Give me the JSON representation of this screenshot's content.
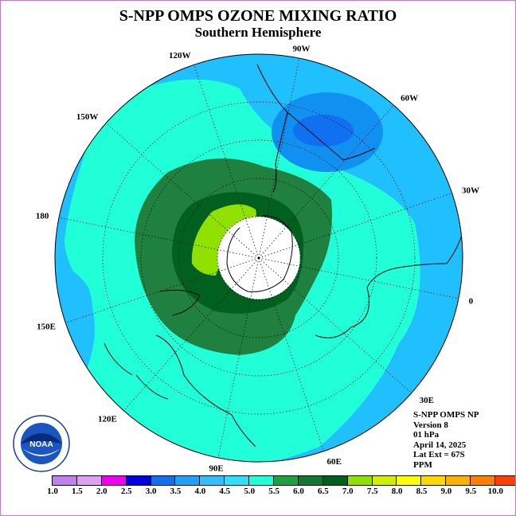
{
  "title": "S-NPP OMPS OZONE MIXING RATIO",
  "subtitle": "Southern Hemisphere",
  "info": {
    "instrument": "S-NPP OMPS NP",
    "version": "Version 8",
    "pressure": "01 hPa",
    "date": "April 14, 2025",
    "lat_ext": "Lat Ext = 67S",
    "units": "PPM"
  },
  "logo_text": "NOAA",
  "logo_ring_text": "NATIONAL OCEANIC AND ATMOSPHERIC ADMINISTRATION  U.S. DEPARTMENT OF COMMERCE",
  "longitude_labels": [
    {
      "text": "0",
      "lon": 0
    },
    {
      "text": "30W",
      "lon": -30
    },
    {
      "text": "60W",
      "lon": -60
    },
    {
      "text": "90W",
      "lon": -90
    },
    {
      "text": "120W",
      "lon": -120
    },
    {
      "text": "150W",
      "lon": -150
    },
    {
      "text": "180",
      "lon": 180
    },
    {
      "text": "150E",
      "lon": 150
    },
    {
      "text": "120E",
      "lon": 120
    },
    {
      "text": "90E",
      "lon": 90
    },
    {
      "text": "60E",
      "lon": 60
    },
    {
      "text": "30E",
      "lon": 30
    }
  ],
  "colorbar": {
    "colors": [
      "#c080f0",
      "#e0a0f0",
      "#f000f0",
      "#0000e0",
      "#1070f0",
      "#20a0f8",
      "#30c0ff",
      "#30dcff",
      "#20ffd8",
      "#20a040",
      "#107830",
      "#006020",
      "#90e000",
      "#d0f000",
      "#ffff00",
      "#ffd800",
      "#ffb000",
      "#ff8000",
      "#ff4000",
      "#ff0000",
      "#b02020",
      "#806040"
    ],
    "labels": [
      "1.0",
      "1.5",
      "2.0",
      "2.5",
      "3.0",
      "3.5",
      "4.0",
      "4.5",
      "5.0",
      "5.5",
      "6.0",
      "6.5",
      "7.0",
      "7.5",
      "8.0",
      "8.5",
      "9.0",
      "9.5",
      "10.0"
    ]
  },
  "map_colors": {
    "ocean_outer": "#20c0ff",
    "band_4_5": "#20ffd8",
    "band_5_5": "#208040",
    "band_6_0": "#006020",
    "band_6_5": "#90e000",
    "min_3_5": "#1090f0",
    "min_3_0": "#1070f0",
    "no_data": "#ffffff"
  }
}
